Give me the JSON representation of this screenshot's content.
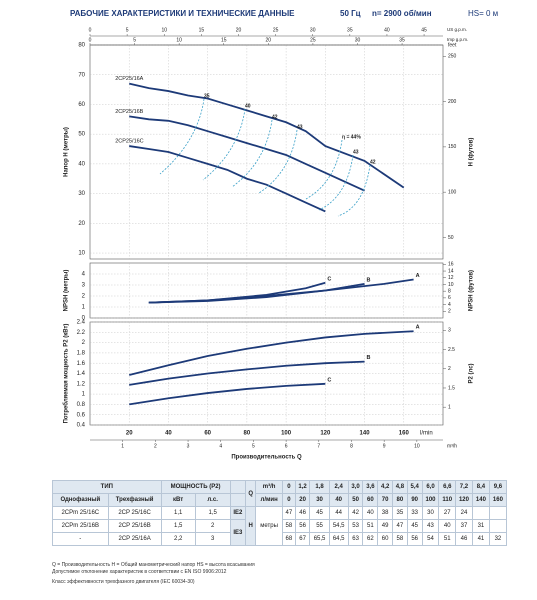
{
  "header": {
    "title": "РАБОЧИЕ ХАРАКТЕРИСТИКИ И ТЕХНИЧЕСКИЕ ДАННЫЕ",
    "freq": "50 Гц",
    "speed": "n= 2900 об/мин",
    "hs": "HS= 0 м"
  },
  "chart_data": [
    {
      "type": "line",
      "ylabel": "Напор H (метры)",
      "y2label": "H (футов)",
      "y2unit": "feet",
      "ylim": [
        8,
        80
      ],
      "yticks": [
        10,
        20,
        30,
        40,
        50,
        60,
        70,
        80
      ],
      "y2lim": [
        26.2,
        262.5
      ],
      "y2ticks": [
        50,
        100,
        150,
        200,
        250
      ],
      "us_gpm": {
        "label": "US g.p.m.",
        "xlim": [
          0,
          47.55
        ],
        "xticks": [
          0,
          5,
          10,
          15,
          20,
          25,
          30,
          35,
          40,
          45
        ]
      },
      "imp_gpm": {
        "label": "Imp g.p.m.",
        "xlim": [
          0,
          39.59
        ],
        "xticks": [
          0,
          5,
          10,
          15,
          20,
          25,
          30,
          35
        ]
      },
      "efficiency_labels": [
        "35",
        "40",
        "42",
        "43",
        "η = 44%",
        "43",
        "42"
      ],
      "efficiency_color": "#3aa0c8",
      "series": [
        {
          "name": "2CP25/16A",
          "color": "#1d3a78",
          "x": [
            20,
            30,
            40,
            50,
            60,
            70,
            80,
            90,
            100,
            110,
            120,
            140,
            160
          ],
          "values": [
            67,
            65.5,
            64.5,
            63,
            62,
            60,
            58,
            56,
            54,
            51,
            46,
            41,
            32
          ]
        },
        {
          "name": "2CP25/16B",
          "color": "#1d3a78",
          "x": [
            20,
            30,
            40,
            50,
            60,
            70,
            80,
            90,
            100,
            110,
            120,
            140
          ],
          "values": [
            56,
            55,
            54.5,
            53,
            51,
            49,
            47,
            45,
            43,
            40,
            37,
            31
          ]
        },
        {
          "name": "2CP25/16C",
          "color": "#1d3a78",
          "x": [
            20,
            30,
            40,
            50,
            60,
            70,
            80,
            90,
            100,
            110,
            120
          ],
          "values": [
            46,
            45,
            44,
            42,
            40,
            38,
            35,
            33,
            30,
            27,
            24
          ]
        }
      ]
    },
    {
      "type": "line",
      "ylabel": "NPSH (метры)",
      "y2label": "NPSH (футов)",
      "ylim": [
        0,
        5
      ],
      "yticks": [
        0,
        1,
        2,
        3,
        4
      ],
      "y2lim": [
        0,
        16.4
      ],
      "y2ticks": [
        2,
        4,
        6,
        8,
        10,
        12,
        14,
        16
      ],
      "series": [
        {
          "name": "A",
          "color": "#1d3a78",
          "x": [
            30,
            60,
            90,
            120,
            150,
            165
          ],
          "values": [
            1.4,
            1.6,
            2.0,
            2.5,
            3.1,
            3.5
          ]
        },
        {
          "name": "B",
          "color": "#1d3a78",
          "x": [
            30,
            60,
            90,
            120,
            140
          ],
          "values": [
            1.4,
            1.55,
            1.9,
            2.5,
            3.1
          ]
        },
        {
          "name": "C",
          "color": "#1d3a78",
          "x": [
            30,
            60,
            90,
            110,
            120
          ],
          "values": [
            1.4,
            1.6,
            2.1,
            2.7,
            3.2
          ]
        }
      ]
    },
    {
      "type": "line",
      "ylabel": "Потребляемая мощность P2 (кВт)",
      "y2label": "P2 (лс)",
      "xlabel": "Производительность Q",
      "xunit": "l/min",
      "xlim": [
        0,
        180
      ],
      "xticks": [
        20,
        40,
        60,
        80,
        100,
        120,
        140,
        160
      ],
      "m3h": {
        "label": "m³/h",
        "xlim": [
          0,
          10.8
        ],
        "xticks": [
          1,
          2,
          3,
          4,
          5,
          6,
          7,
          8,
          9,
          10
        ]
      },
      "ylim": [
        0.4,
        2.4
      ],
      "yticks": [
        0.4,
        0.6,
        0.8,
        1.0,
        1.2,
        1.4,
        1.6,
        1.8,
        2.0,
        2.2,
        2.4
      ],
      "y2lim": [
        0.536,
        3.218
      ],
      "y2ticks": [
        1,
        1.5,
        2,
        2.5,
        3
      ],
      "series": [
        {
          "name": "A",
          "color": "#1d3a78",
          "x": [
            20,
            40,
            60,
            80,
            100,
            120,
            140,
            160,
            165
          ],
          "values": [
            1.37,
            1.56,
            1.74,
            1.88,
            2.0,
            2.1,
            2.17,
            2.21,
            2.22
          ]
        },
        {
          "name": "B",
          "color": "#1d3a78",
          "x": [
            20,
            40,
            60,
            80,
            100,
            120,
            140
          ],
          "values": [
            1.18,
            1.3,
            1.4,
            1.48,
            1.55,
            1.6,
            1.63
          ]
        },
        {
          "name": "C",
          "color": "#1d3a78",
          "x": [
            20,
            40,
            60,
            80,
            100,
            120
          ],
          "values": [
            0.8,
            0.92,
            1.02,
            1.1,
            1.16,
            1.2
          ]
        }
      ]
    }
  ],
  "table": {
    "type_header": "ТИП",
    "single_phase": "Однофазный",
    "three_phase": "Трехфазный",
    "power_header": "МОЩНОСТЬ (P2)",
    "kw": "кВт",
    "hp": "л.с.",
    "q_label": "Q",
    "q_units": [
      "m³/h",
      "л/мин"
    ],
    "q_m3h": [
      "0",
      "1,2",
      "1,8",
      "2,4",
      "3,0",
      "3,6",
      "4,2",
      "4,8",
      "5,4",
      "6,0",
      "6,6",
      "7,2",
      "8,4",
      "9,6"
    ],
    "q_lpm": [
      0,
      20,
      30,
      40,
      50,
      60,
      70,
      80,
      90,
      100,
      110,
      120,
      140,
      160
    ],
    "h_label": "H",
    "h_unit": "метры",
    "rows": [
      {
        "single": "2CPm 25/16C",
        "three": "2CP 25/16C",
        "kw": "1,1",
        "hp": "1,5",
        "ie": "IE2",
        "h": [
          47,
          46,
          45,
          44,
          42,
          40,
          38,
          35,
          33,
          30,
          27,
          24
        ]
      },
      {
        "single": "2CPm 25/16B",
        "three": "2CP 25/16B",
        "kw": "1,5",
        "hp": 2,
        "ie": "IE3",
        "h": [
          58,
          56,
          55,
          "54,5",
          53,
          51,
          49,
          47,
          45,
          43,
          40,
          37,
          31
        ]
      },
      {
        "single": "-",
        "three": "2CP 25/16A",
        "kw": "2,2",
        "hp": 3,
        "h": [
          68,
          67,
          "65,5",
          "64,5",
          63,
          62,
          60,
          58,
          56,
          54,
          51,
          46,
          41,
          32
        ]
      }
    ]
  },
  "notes": [
    "Q = Производительность  H = Общий манометрический напор  HS = высота всасывания",
    "Допустимое отклонение характеристик в соответствии с EN ISO 9906:2012",
    "Класс эффективности трехфазного двигателя (IEC 60034-30)"
  ]
}
